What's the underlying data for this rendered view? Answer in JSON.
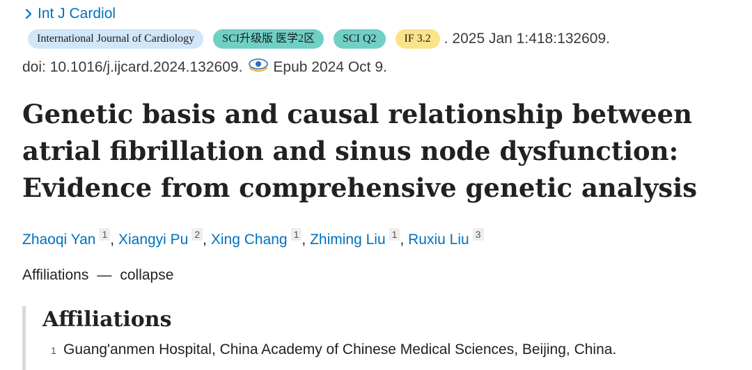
{
  "journal_link": {
    "label": "Int J Cardiol"
  },
  "badges": {
    "journal": "International Journal of Cardiology",
    "sci_upgrade": "SCI升级版 医学2区",
    "sci_q": "SCI Q2",
    "impact_factor": "IF 3.2"
  },
  "citation": {
    "rest": ". 2025 Jan 1:418:132609.",
    "doi": "doi: 10.1016/j.ijcard.2024.132609.",
    "epub": "Epub 2024 Oct 9."
  },
  "article": {
    "title": "Genetic basis and causal relationship between atrial fibrillation and sinus node dysfunction: Evidence from comprehensive genetic analysis"
  },
  "authors": [
    {
      "name": "Zhaoqi Yan",
      "aff": "1"
    },
    {
      "name": "Xiangyi Pu",
      "aff": "2"
    },
    {
      "name": "Xing Chang",
      "aff": "1"
    },
    {
      "name": "Zhiming Liu",
      "aff": "1"
    },
    {
      "name": "Ruxiu Liu",
      "aff": "3"
    }
  ],
  "authors_separator": ",",
  "affiliations_toggle": {
    "label": "Affiliations",
    "separator": "—",
    "action": "collapse"
  },
  "affiliations_panel": {
    "heading": "Affiliations",
    "items": [
      {
        "num": "1",
        "text": "Guang'anmen Hospital, China Academy of Chinese Medical Sciences, Beijing, China."
      }
    ]
  },
  "colors": {
    "link": "#0071bc",
    "journal_badge": "#d2e6f9",
    "sci_badge": "#6fd0c6",
    "if_badge": "#fbe38a"
  },
  "icons": {
    "journal_link": "chevron-right-icon",
    "epub": "epub-eye-icon"
  }
}
